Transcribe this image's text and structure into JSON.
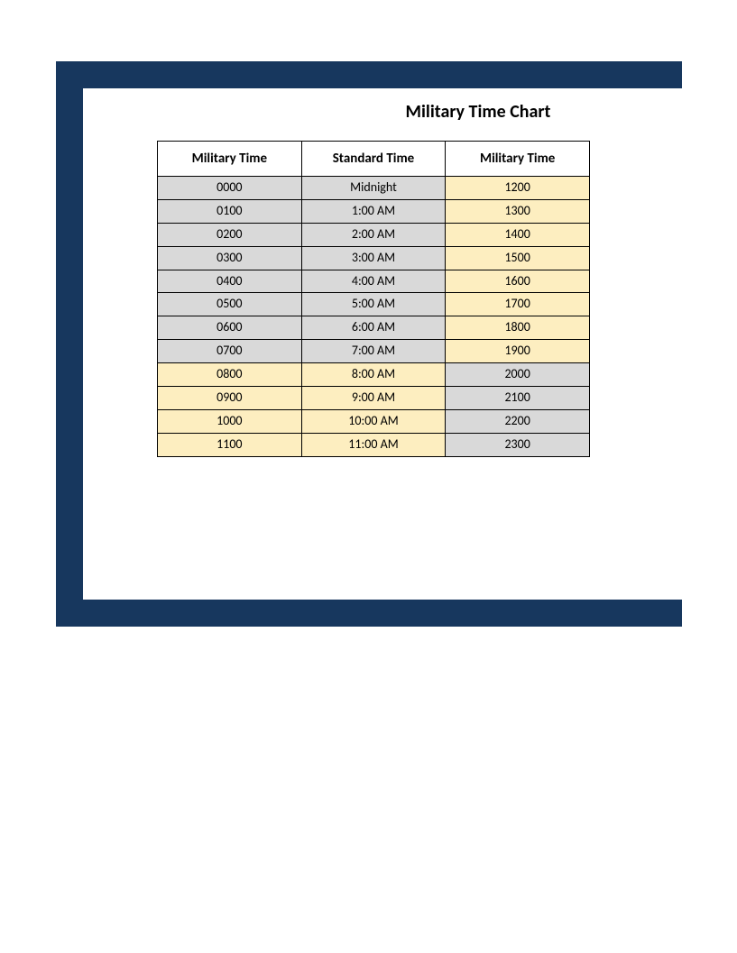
{
  "title": "Military Time Chart",
  "colors": {
    "frame": "#17375e",
    "gray_fill": "#d9d9d9",
    "beige_fill": "#fdeec0",
    "border": "#000000",
    "text": "#000000",
    "background": "#ffffff"
  },
  "typography": {
    "title_fontsize": 20,
    "title_weight": "bold",
    "header_fontsize": 15,
    "header_weight": "bold",
    "cell_fontsize": 14,
    "font_family": "Calibri, Arial, sans-serif"
  },
  "table": {
    "columns": [
      "Military Time",
      "Standard Time",
      "Military Time"
    ],
    "rows": [
      {
        "cells": [
          "0000",
          "Midnight",
          "1200"
        ],
        "fills": [
          "gray",
          "gray",
          "beige"
        ]
      },
      {
        "cells": [
          "0100",
          "1:00 AM",
          "1300"
        ],
        "fills": [
          "gray",
          "gray",
          "beige"
        ]
      },
      {
        "cells": [
          "0200",
          "2:00 AM",
          "1400"
        ],
        "fills": [
          "gray",
          "gray",
          "beige"
        ]
      },
      {
        "cells": [
          "0300",
          "3:00 AM",
          "1500"
        ],
        "fills": [
          "gray",
          "gray",
          "beige"
        ]
      },
      {
        "cells": [
          "0400",
          "4:00 AM",
          "1600"
        ],
        "fills": [
          "gray",
          "gray",
          "beige"
        ]
      },
      {
        "cells": [
          "0500",
          "5:00 AM",
          "1700"
        ],
        "fills": [
          "gray",
          "gray",
          "beige"
        ]
      },
      {
        "cells": [
          "0600",
          "6:00 AM",
          "1800"
        ],
        "fills": [
          "gray",
          "gray",
          "beige"
        ]
      },
      {
        "cells": [
          "0700",
          "7:00 AM",
          "1900"
        ],
        "fills": [
          "gray",
          "gray",
          "beige"
        ]
      },
      {
        "cells": [
          "0800",
          "8:00 AM",
          "2000"
        ],
        "fills": [
          "beige",
          "beige",
          "gray"
        ]
      },
      {
        "cells": [
          "0900",
          "9:00 AM",
          "2100"
        ],
        "fills": [
          "beige",
          "beige",
          "gray"
        ]
      },
      {
        "cells": [
          "1000",
          "10:00 AM",
          "2200"
        ],
        "fills": [
          "beige",
          "beige",
          "gray"
        ]
      },
      {
        "cells": [
          "1100",
          "11:00 AM",
          "2300"
        ],
        "fills": [
          "beige",
          "beige",
          "gray"
        ]
      }
    ]
  }
}
